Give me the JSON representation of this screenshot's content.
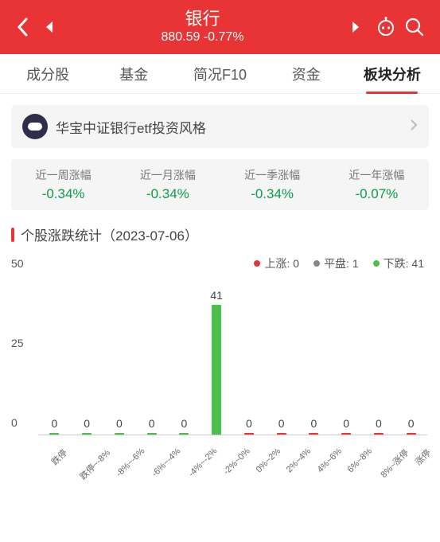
{
  "header": {
    "title": "银行",
    "price": "880.59",
    "change": "-0.77%"
  },
  "tabs": [
    {
      "label": "成分股",
      "active": false
    },
    {
      "label": "基金",
      "active": false
    },
    {
      "label": "简况F10",
      "active": false
    },
    {
      "label": "资金",
      "active": false
    },
    {
      "label": "板块分析",
      "active": true
    }
  ],
  "etf_card": {
    "text": "华宝中证银行etf投资风格"
  },
  "period_stats": [
    {
      "label": "近一周涨幅",
      "value": "-0.34%"
    },
    {
      "label": "近一月涨幅",
      "value": "-0.34%"
    },
    {
      "label": "近一季涨幅",
      "value": "-0.34%"
    },
    {
      "label": "近一年涨幅",
      "value": "-0.07%"
    }
  ],
  "section": {
    "title": "个股涨跌统计（2023-07-06）"
  },
  "legend": [
    {
      "label": "上涨:",
      "value": "0",
      "color": "#e83434"
    },
    {
      "label": "平盘:",
      "value": "1",
      "color": "#888888"
    },
    {
      "label": "下跌:",
      "value": "41",
      "color": "#4bbf4b"
    }
  ],
  "chart": {
    "type": "bar",
    "ymax": 50,
    "yticks": [
      0,
      25,
      50
    ],
    "colors": {
      "down": "#4bbf4b",
      "up": "#e83434",
      "grid": "#cccccc",
      "text": "#555555"
    },
    "bars": [
      {
        "cat": "跌停",
        "val": 0,
        "color": "#4bbf4b"
      },
      {
        "cat": "跌停~-8%",
        "val": 0,
        "color": "#4bbf4b"
      },
      {
        "cat": "-8%~-6%",
        "val": 0,
        "color": "#4bbf4b"
      },
      {
        "cat": "-6%~-4%",
        "val": 0,
        "color": "#4bbf4b"
      },
      {
        "cat": "-4%~-2%",
        "val": 0,
        "color": "#4bbf4b"
      },
      {
        "cat": "-2%~0%",
        "val": 41,
        "color": "#4bbf4b"
      },
      {
        "cat": "0%~2%",
        "val": 0,
        "color": "#e83434"
      },
      {
        "cat": "2%~4%",
        "val": 0,
        "color": "#e83434"
      },
      {
        "cat": "4%~6%",
        "val": 0,
        "color": "#e83434"
      },
      {
        "cat": "6%~8%",
        "val": 0,
        "color": "#e83434"
      },
      {
        "cat": "8%~涨停",
        "val": 0,
        "color": "#e83434"
      },
      {
        "cat": "涨停",
        "val": 0,
        "color": "#e83434"
      }
    ]
  }
}
